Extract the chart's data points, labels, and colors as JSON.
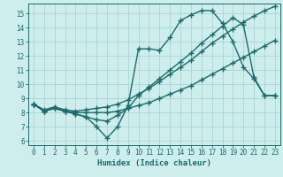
{
  "background_color": "#ceeeed",
  "grid_color": "#aad4d4",
  "line_color": "#1a6b6b",
  "marker": "+",
  "markersize": 5,
  "linewidth": 1.0,
  "xlabel": "Humidex (Indice chaleur)",
  "xlim": [
    -0.5,
    23.5
  ],
  "ylim": [
    5.7,
    15.7
  ],
  "yticks": [
    6,
    7,
    8,
    9,
    10,
    11,
    12,
    13,
    14,
    15
  ],
  "xticks": [
    0,
    1,
    2,
    3,
    4,
    5,
    6,
    7,
    8,
    9,
    10,
    11,
    12,
    13,
    14,
    15,
    16,
    17,
    18,
    19,
    20,
    21,
    22,
    23
  ],
  "series1_x": [
    0,
    1,
    2,
    3,
    4,
    5,
    6,
    7,
    8,
    9,
    10,
    11,
    12,
    13,
    14,
    15,
    16,
    17,
    18,
    19,
    20,
    21,
    22,
    23
  ],
  "series1_y": [
    8.6,
    8.1,
    8.3,
    8.1,
    7.9,
    7.7,
    7.0,
    6.2,
    7.0,
    8.5,
    12.5,
    12.5,
    12.4,
    13.3,
    14.5,
    14.9,
    15.2,
    15.2,
    14.3,
    13.0,
    11.2,
    10.4,
    9.2,
    9.2
  ],
  "series2_x": [
    0,
    1,
    2,
    3,
    4,
    5,
    6,
    7,
    8,
    9,
    10,
    11,
    12,
    13,
    14,
    15,
    16,
    17,
    18,
    19,
    20,
    21,
    22,
    23
  ],
  "series2_y": [
    8.6,
    8.1,
    8.3,
    8.1,
    7.9,
    7.7,
    7.5,
    7.4,
    7.8,
    8.3,
    9.2,
    9.8,
    10.4,
    11.0,
    11.6,
    12.2,
    12.9,
    13.5,
    14.1,
    14.7,
    14.2,
    10.5,
    9.2,
    9.2
  ],
  "series3_x": [
    0,
    1,
    2,
    3,
    4,
    5,
    6,
    7,
    8,
    9,
    10,
    11,
    12,
    13,
    14,
    15,
    16,
    17,
    18,
    19,
    20,
    21,
    22,
    23
  ],
  "series3_y": [
    8.6,
    8.2,
    8.4,
    8.2,
    8.1,
    8.2,
    8.3,
    8.4,
    8.6,
    8.9,
    9.3,
    9.7,
    10.2,
    10.7,
    11.2,
    11.7,
    12.3,
    12.9,
    13.4,
    13.9,
    14.4,
    14.8,
    15.2,
    15.5
  ],
  "series4_x": [
    0,
    1,
    2,
    3,
    4,
    5,
    6,
    7,
    8,
    9,
    10,
    11,
    12,
    13,
    14,
    15,
    16,
    17,
    18,
    19,
    20,
    21,
    22,
    23
  ],
  "series4_y": [
    8.6,
    8.1,
    8.3,
    8.1,
    8.0,
    8.0,
    8.0,
    8.0,
    8.1,
    8.3,
    8.5,
    8.7,
    9.0,
    9.3,
    9.6,
    9.9,
    10.3,
    10.7,
    11.1,
    11.5,
    11.9,
    12.3,
    12.7,
    13.1
  ]
}
